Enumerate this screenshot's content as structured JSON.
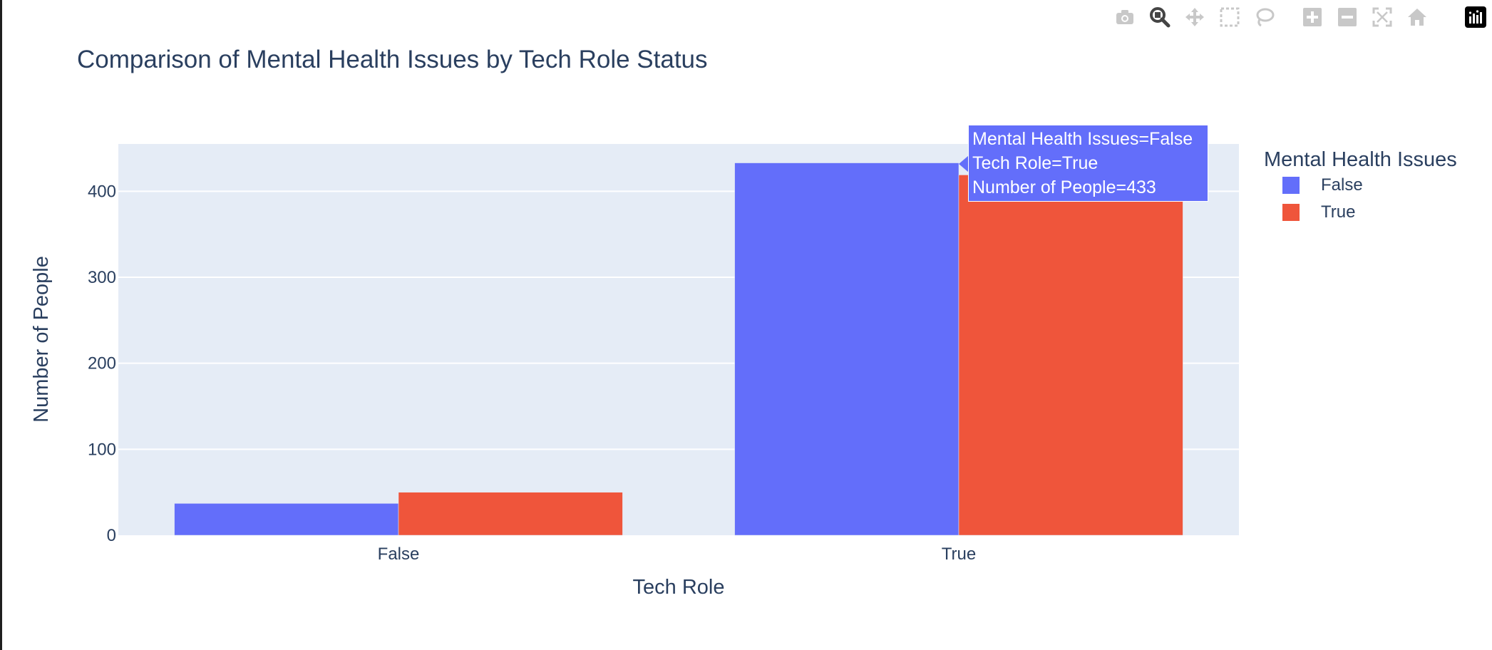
{
  "modebar": {
    "icons": [
      "camera-icon",
      "zoom-icon",
      "pan-icon",
      "box-select-icon",
      "lasso-select-icon",
      "zoom-in-icon",
      "zoom-out-icon",
      "autoscale-icon",
      "reset-axes-icon",
      "plotly-logo-icon"
    ]
  },
  "chart_data": {
    "type": "bar",
    "title": "Comparison of Mental Health Issues by Tech Role Status",
    "xlabel": "Tech Role",
    "ylabel": "Number of People",
    "categories": [
      "False",
      "True"
    ],
    "series": [
      {
        "name": "False",
        "values": [
          37,
          433
        ],
        "color": "#636efa"
      },
      {
        "name": "True",
        "values": [
          50,
          419
        ],
        "color": "#ef553b"
      }
    ],
    "ylim": [
      0,
      455
    ],
    "yticks": [
      0,
      100,
      200,
      300,
      400
    ],
    "ytick_labels": [
      "0",
      "100",
      "200",
      "300",
      "400"
    ],
    "grid": true,
    "plot_bg": "#e5ecf6",
    "legend": {
      "title": "Mental Health Issues",
      "placement": "top-right"
    },
    "hover": {
      "lines": [
        "Mental Health Issues=False",
        "Tech Role=True",
        "Number of People=433"
      ]
    }
  }
}
